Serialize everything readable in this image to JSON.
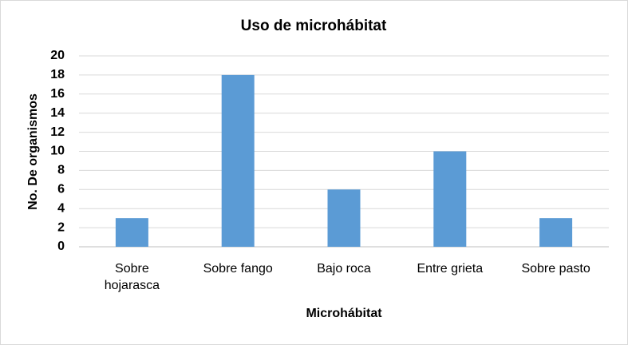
{
  "chart_data": {
    "type": "bar",
    "title": "Uso de microhábitat",
    "x_label": "Microhábitat",
    "y_label": "No. De organismos",
    "categories": [
      "Sobre hojarasca",
      "Sobre fango",
      "Bajo roca",
      "Entre grieta",
      "Sobre pasto"
    ],
    "values": [
      3,
      18,
      6,
      10,
      3
    ],
    "color": "#5b9bd5",
    "ylim": [
      0,
      20
    ],
    "yticks": [
      0,
      2,
      4,
      6,
      8,
      10,
      12,
      14,
      16,
      18,
      20
    ],
    "grid": true
  }
}
